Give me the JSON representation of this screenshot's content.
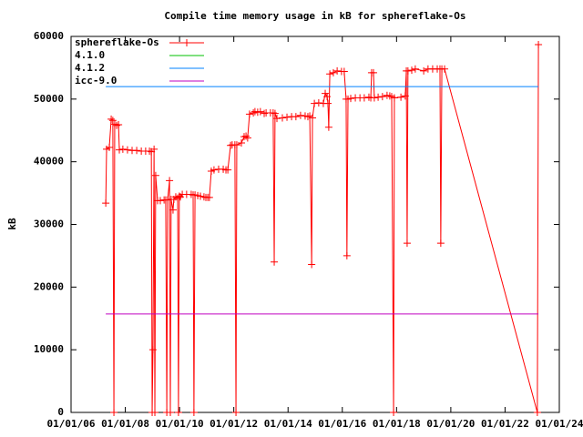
{
  "chart_data": {
    "type": "line",
    "title": "Compile time memory usage in kB for sphereflake-Os",
    "y_label": "kB",
    "xlim": [
      6,
      24
    ],
    "ylim": [
      0,
      60000
    ],
    "xticks": [
      {
        "value": 6,
        "label": "01/01/06"
      },
      {
        "value": 8,
        "label": "01/01/08"
      },
      {
        "value": 10,
        "label": "01/01/10"
      },
      {
        "value": 12,
        "label": "01/01/12"
      },
      {
        "value": 14,
        "label": "01/01/14"
      },
      {
        "value": 16,
        "label": "01/01/16"
      },
      {
        "value": 18,
        "label": "01/01/18"
      },
      {
        "value": 20,
        "label": "01/01/20"
      },
      {
        "value": 22,
        "label": "01/01/22"
      },
      {
        "value": 24,
        "label": "01/01/24"
      }
    ],
    "yticks": [
      0,
      10000,
      20000,
      30000,
      40000,
      50000,
      60000
    ],
    "grid": false,
    "legend": "top-left",
    "series": [
      {
        "name": "sphereflake-Os",
        "color": "#ff0000",
        "markers": true,
        "x": [
          7.28,
          7.31,
          7.41,
          7.48,
          7.54,
          7.58,
          7.61,
          7.68,
          7.75,
          7.78,
          7.91,
          8.08,
          8.25,
          8.42,
          8.59,
          8.75,
          8.89,
          8.96,
          8.99,
          9.02,
          9.06,
          9.09,
          9.12,
          9.19,
          9.29,
          9.43,
          9.49,
          9.53,
          9.56,
          9.63,
          9.66,
          9.69,
          9.76,
          9.79,
          9.86,
          9.93,
          9.96,
          9.99,
          10.03,
          10.1,
          10.26,
          10.43,
          10.5,
          10.53,
          10.57,
          10.67,
          10.77,
          10.9,
          10.97,
          11.04,
          11.1,
          11.17,
          11.27,
          11.44,
          11.61,
          11.71,
          11.78,
          11.88,
          11.94,
          12.04,
          12.08,
          12.11,
          12.28,
          12.38,
          12.45,
          12.51,
          12.58,
          12.72,
          12.78,
          12.88,
          12.98,
          13.12,
          13.19,
          13.35,
          13.45,
          13.49,
          13.52,
          13.59,
          13.79,
          13.96,
          14.13,
          14.29,
          14.46,
          14.63,
          14.73,
          14.8,
          14.87,
          14.9,
          14.97,
          15.13,
          15.3,
          15.37,
          15.44,
          15.47,
          15.5,
          15.54,
          15.67,
          15.81,
          15.97,
          16.07,
          16.14,
          16.17,
          16.21,
          16.31,
          16.48,
          16.65,
          16.81,
          16.98,
          17.05,
          17.08,
          17.15,
          17.18,
          17.32,
          17.48,
          17.65,
          17.75,
          17.82,
          17.89,
          17.92,
          18.16,
          18.32,
          18.36,
          18.39,
          18.42,
          18.56,
          18.69,
          19.0,
          19.16,
          19.33,
          19.5,
          19.6,
          19.63,
          19.67,
          19.77,
          23.19,
          23.23
        ],
        "values": [
          33400,
          42000,
          42300,
          46800,
          46600,
          0,
          46000,
          45800,
          45900,
          41900,
          42000,
          41900,
          41800,
          41800,
          41700,
          41700,
          41700,
          41600,
          0,
          10000,
          42000,
          0,
          37800,
          33800,
          33800,
          33900,
          33900,
          0,
          33900,
          37000,
          0,
          34000,
          32300,
          34000,
          34400,
          34200,
          0,
          34500,
          34400,
          34800,
          34800,
          34800,
          34700,
          0,
          34700,
          34600,
          34500,
          34400,
          34300,
          34300,
          34300,
          38500,
          38700,
          38800,
          38800,
          38700,
          38700,
          42600,
          42700,
          42700,
          0,
          42700,
          43000,
          44000,
          44100,
          43800,
          47600,
          47800,
          48000,
          47900,
          48000,
          47700,
          47800,
          47800,
          47800,
          24000,
          47700,
          46900,
          47000,
          47100,
          47200,
          47200,
          47400,
          47300,
          47200,
          47300,
          23600,
          47000,
          49300,
          49400,
          49300,
          50900,
          50400,
          49300,
          45500,
          54000,
          54200,
          54500,
          54400,
          54400,
          50000,
          25000,
          50000,
          50100,
          50200,
          50200,
          50200,
          50300,
          50200,
          54200,
          54200,
          50200,
          50300,
          50400,
          50600,
          50500,
          50400,
          0,
          50200,
          50300,
          50500,
          54500,
          27000,
          54500,
          54600,
          54800,
          54500,
          54800,
          54800,
          54800,
          54800,
          27000,
          54800,
          54800,
          0,
          58700
        ]
      },
      {
        "name": "4.1.0",
        "color": "#00c000",
        "markers": false,
        "x": [],
        "values": []
      },
      {
        "name": "4.1.2",
        "color": "#0080ff",
        "markers": false,
        "x": [
          7.28,
          23.23
        ],
        "values": [
          52000,
          52000
        ]
      },
      {
        "name": "icc-9.0",
        "color": "#c000c0",
        "markers": false,
        "x": [
          7.28,
          23.23
        ],
        "values": [
          15700,
          15700
        ]
      }
    ]
  }
}
